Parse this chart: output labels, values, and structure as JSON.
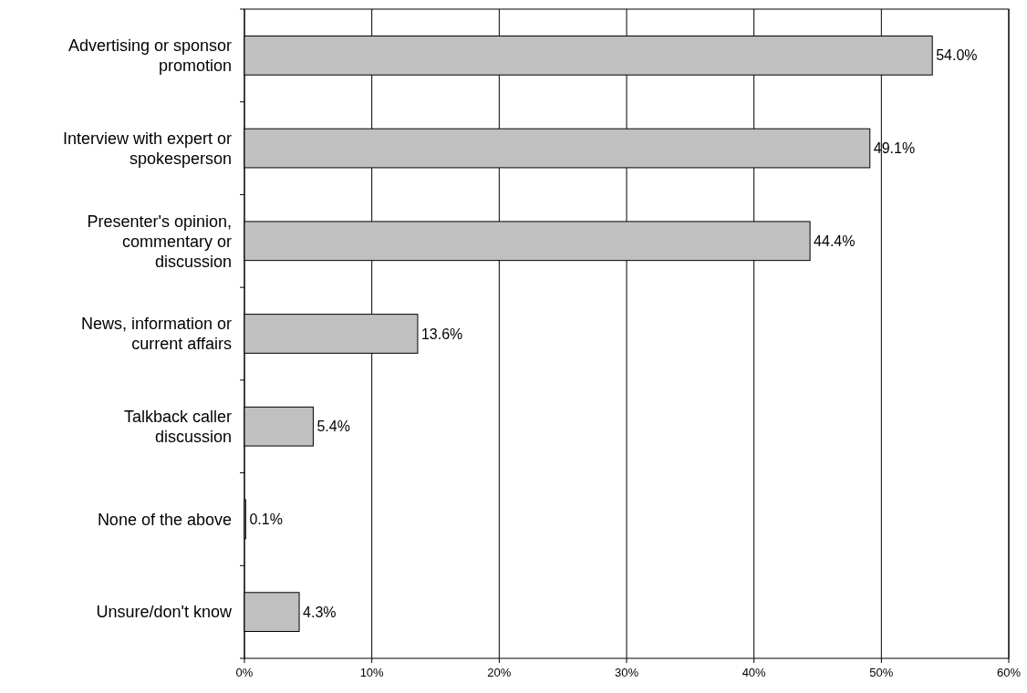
{
  "chart_data": {
    "type": "bar",
    "orientation": "horizontal",
    "categories": [
      "Advertising or sponsor\npromotion",
      "Interview with expert or\nspokesperson",
      "Presenter's opinion,\ncommentary or\ndiscussion",
      "News, information or\ncurrent affairs",
      "Talkback caller\ndiscussion",
      "None of the above",
      "Unsure/don't know"
    ],
    "values": [
      54.0,
      49.1,
      44.4,
      13.6,
      5.4,
      0.1,
      4.3
    ],
    "value_labels": [
      "54.0%",
      "49.1%",
      "44.4%",
      "13.6%",
      "5.4%",
      "0.1%",
      "4.3%"
    ],
    "color": "#c0c0c0",
    "xlim": [
      0,
      60
    ],
    "xticks": [
      {
        "value": 0,
        "label": "0%"
      },
      {
        "value": 10,
        "label": "10%"
      },
      {
        "value": 20,
        "label": "20%"
      },
      {
        "value": 30,
        "label": "30%"
      },
      {
        "value": 40,
        "label": "40%"
      },
      {
        "value": 50,
        "label": "50%"
      },
      {
        "value": 60,
        "label": "60%"
      }
    ],
    "grid": "x"
  }
}
